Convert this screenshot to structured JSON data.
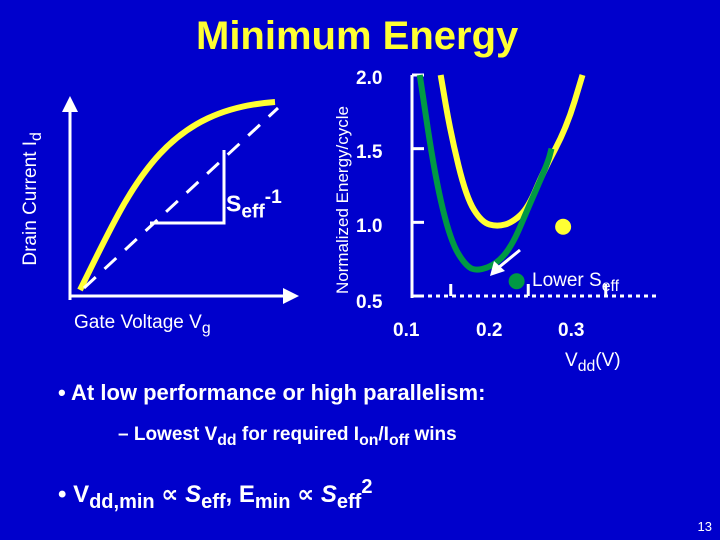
{
  "title": "Minimum Energy",
  "chart_data": [
    {
      "type": "line",
      "ylabel": "Drain Current I",
      "ylabel_sub": "d",
      "xlabel": "Gate Voltage V",
      "xlabel_sub": "g",
      "annotation": {
        "base": "S",
        "sub": "eff",
        "sup": "-1"
      },
      "series": [
        {
          "name": "",
          "color": "#ffff33"
        },
        {
          "name": "",
          "color": "#ffffff",
          "style": "dashed"
        }
      ]
    },
    {
      "type": "line",
      "ylabel": "Normalized Energy/cycle",
      "xlabel": "V",
      "xlabel_sub": "dd",
      "xlabel_unit": "(V)",
      "xticks": [
        "0.1",
        "0.2",
        "0.3"
      ],
      "yticks": [
        "2.0",
        "1.5",
        "1.0",
        "0.5"
      ],
      "xlim": [
        0.05,
        0.37
      ],
      "ylim": [
        0.5,
        2.0
      ],
      "series": [
        {
          "name": "",
          "color": "#ffff33",
          "points": [
            [
              0.087,
              2.0
            ],
            [
              0.1,
              1.6
            ],
            [
              0.12,
              1.17
            ],
            [
              0.14,
              1.0
            ],
            [
              0.16,
              0.97
            ],
            [
              0.18,
              1.0
            ],
            [
              0.2,
              1.1
            ],
            [
              0.22,
              1.35
            ],
            [
              0.25,
              1.65
            ],
            [
              0.27,
              2.0
            ]
          ]
        },
        {
          "name": "",
          "color": "#009944",
          "points": [
            [
              0.06,
              2.0
            ],
            [
              0.08,
              1.3
            ],
            [
              0.1,
              0.87
            ],
            [
              0.12,
              0.7
            ],
            [
              0.135,
              0.67
            ],
            [
              0.16,
              0.72
            ],
            [
              0.18,
              0.85
            ],
            [
              0.2,
              1.1
            ],
            [
              0.225,
              1.4
            ],
            [
              0.23,
              1.5
            ]
          ]
        }
      ],
      "markers": [
        {
          "x": 0.245,
          "y": 0.97,
          "color": "#ffff33"
        },
        {
          "x": 0.185,
          "y": 0.6,
          "color": "#009944"
        }
      ],
      "arrow_label": {
        "base": "Lower S",
        "sub": "eff"
      }
    }
  ],
  "bullets": {
    "b1": "At low performance or high parallelism:",
    "b2_parts": [
      "– Lowest V",
      "dd",
      " for required I",
      "on",
      "/I",
      "off",
      " wins"
    ],
    "b3_parts": [
      "V",
      "dd,min",
      " ∝ ",
      "S",
      "eff",
      ", E",
      "min",
      " ∝ ",
      "S",
      "eff",
      "2"
    ]
  },
  "page_number": "13"
}
